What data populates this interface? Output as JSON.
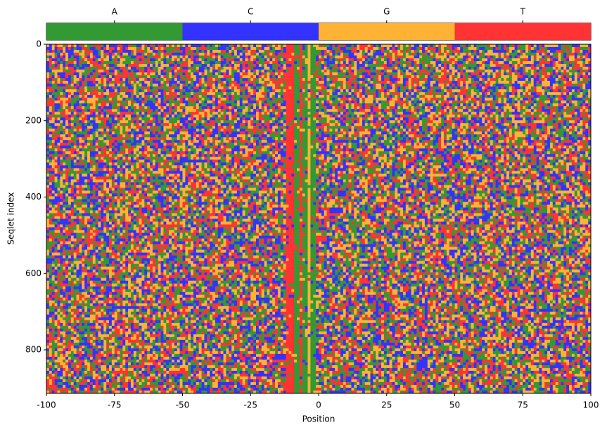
{
  "chart_data": {
    "type": "sequence-heatmap",
    "xlabel": "Position",
    "ylabel": "Seqlet index",
    "xlim": [
      -100,
      100
    ],
    "xticks": [
      -100,
      -75,
      -50,
      -25,
      0,
      25,
      50,
      75,
      100
    ],
    "ylim": [
      0,
      914
    ],
    "yticks": [
      0,
      200,
      400,
      600,
      800
    ],
    "colorbar": {
      "categories": [
        "A",
        "C",
        "G",
        "T"
      ],
      "colors": [
        "#339933",
        "#3333ff",
        "#ffb233",
        "#ff3333"
      ]
    },
    "motif": {
      "positions": [
        -12,
        -11,
        -10,
        -9,
        -8,
        -7,
        -6,
        -5,
        -4,
        -3,
        -2
      ],
      "bases": [
        "T",
        "T",
        "T",
        "A",
        "A",
        "T",
        "A",
        "A",
        "G",
        "A",
        "A"
      ]
    }
  }
}
